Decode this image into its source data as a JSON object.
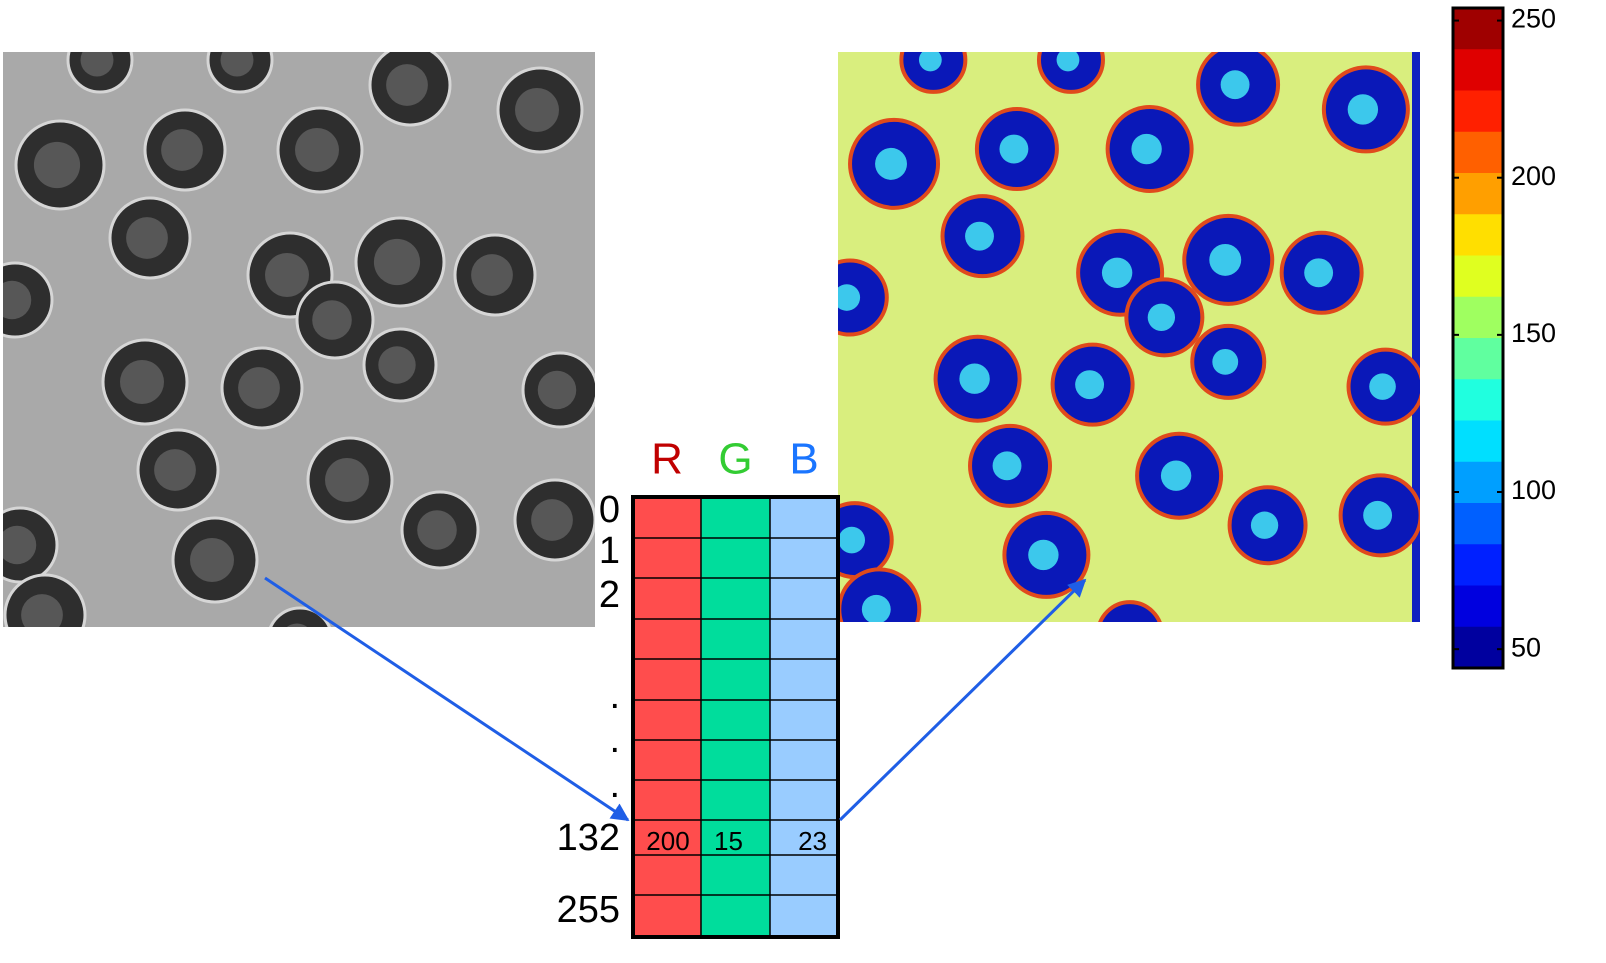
{
  "rgb_table": {
    "headers": [
      "R",
      "G",
      "B"
    ],
    "row_labels": [
      "0",
      "1",
      "2",
      ".",
      ".",
      ".",
      "132",
      "255"
    ],
    "highlight": {
      "row_label": "132",
      "values": [
        200,
        15,
        23
      ]
    }
  },
  "colorbar": {
    "lim": [
      44,
      254
    ],
    "ticks": [
      50,
      100,
      150,
      200,
      250
    ]
  }
}
